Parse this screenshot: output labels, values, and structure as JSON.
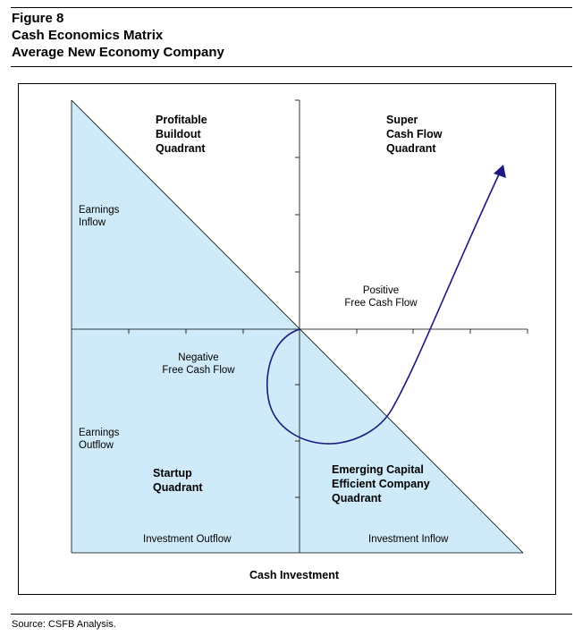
{
  "figure": {
    "title_lines": [
      "Figure 8",
      "Cash Economics Matrix",
      "Average New Economy Company"
    ]
  },
  "quadrants": {
    "profitable_buildout": [
      "Profitable",
      "Buildout",
      "Quadrant"
    ],
    "super_cash_flow": [
      "Super",
      "Cash Flow",
      "Quadrant"
    ],
    "startup": [
      "Startup",
      "Quadrant"
    ],
    "emerging": [
      "Emerging Capital",
      "Efficient Company",
      "Quadrant"
    ]
  },
  "labels": {
    "earnings_inflow": [
      "Earnings",
      "Inflow"
    ],
    "earnings_outflow": [
      "Earnings",
      "Outflow"
    ],
    "positive_fcf": [
      "Positive",
      "Free Cash Flow"
    ],
    "negative_fcf": [
      "Negative",
      "Free Cash Flow"
    ],
    "investment_outflow": "Investment Outflow",
    "investment_inflow": "Investment Inflow",
    "x_axis_title": "Cash Investment"
  },
  "source": "Source: CSFB Analysis.",
  "colors": {
    "shade": "#cfeaf8",
    "curve": "#1a1a80"
  }
}
